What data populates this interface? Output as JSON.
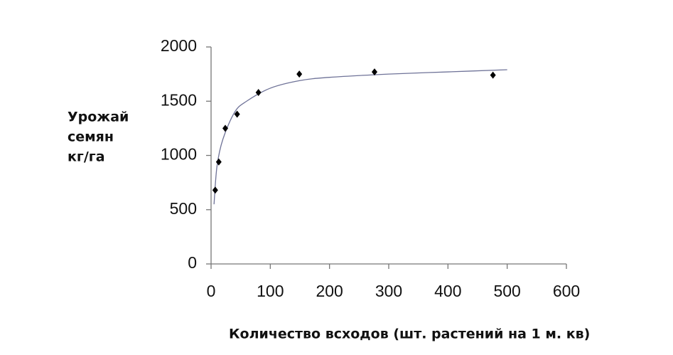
{
  "chart_data": {
    "type": "scatter",
    "x_label": "Количество всходов (шт. растений на 1 м. кв)",
    "y_label": [
      "Урожай",
      "семян",
      "кг/га"
    ],
    "xlim": [
      0,
      600
    ],
    "ylim": [
      0,
      2000
    ],
    "xticks": [
      0,
      100,
      200,
      300,
      400,
      500,
      600
    ],
    "yticks": [
      0,
      500,
      1000,
      1500,
      2000
    ],
    "series": [
      {
        "color": "#000000",
        "x": [
          7,
          13,
          24,
          44,
          80,
          149,
          276,
          476
        ],
        "values": [
          680,
          940,
          1250,
          1380,
          1580,
          1750,
          1770,
          1740
        ]
      }
    ],
    "trendline": {
      "color": "#6f7398",
      "x": [
        5,
        10,
        20,
        40,
        60,
        100,
        150,
        200,
        300,
        400,
        500
      ],
      "values": [
        550,
        900,
        1150,
        1400,
        1500,
        1620,
        1690,
        1720,
        1750,
        1770,
        1790
      ]
    }
  }
}
